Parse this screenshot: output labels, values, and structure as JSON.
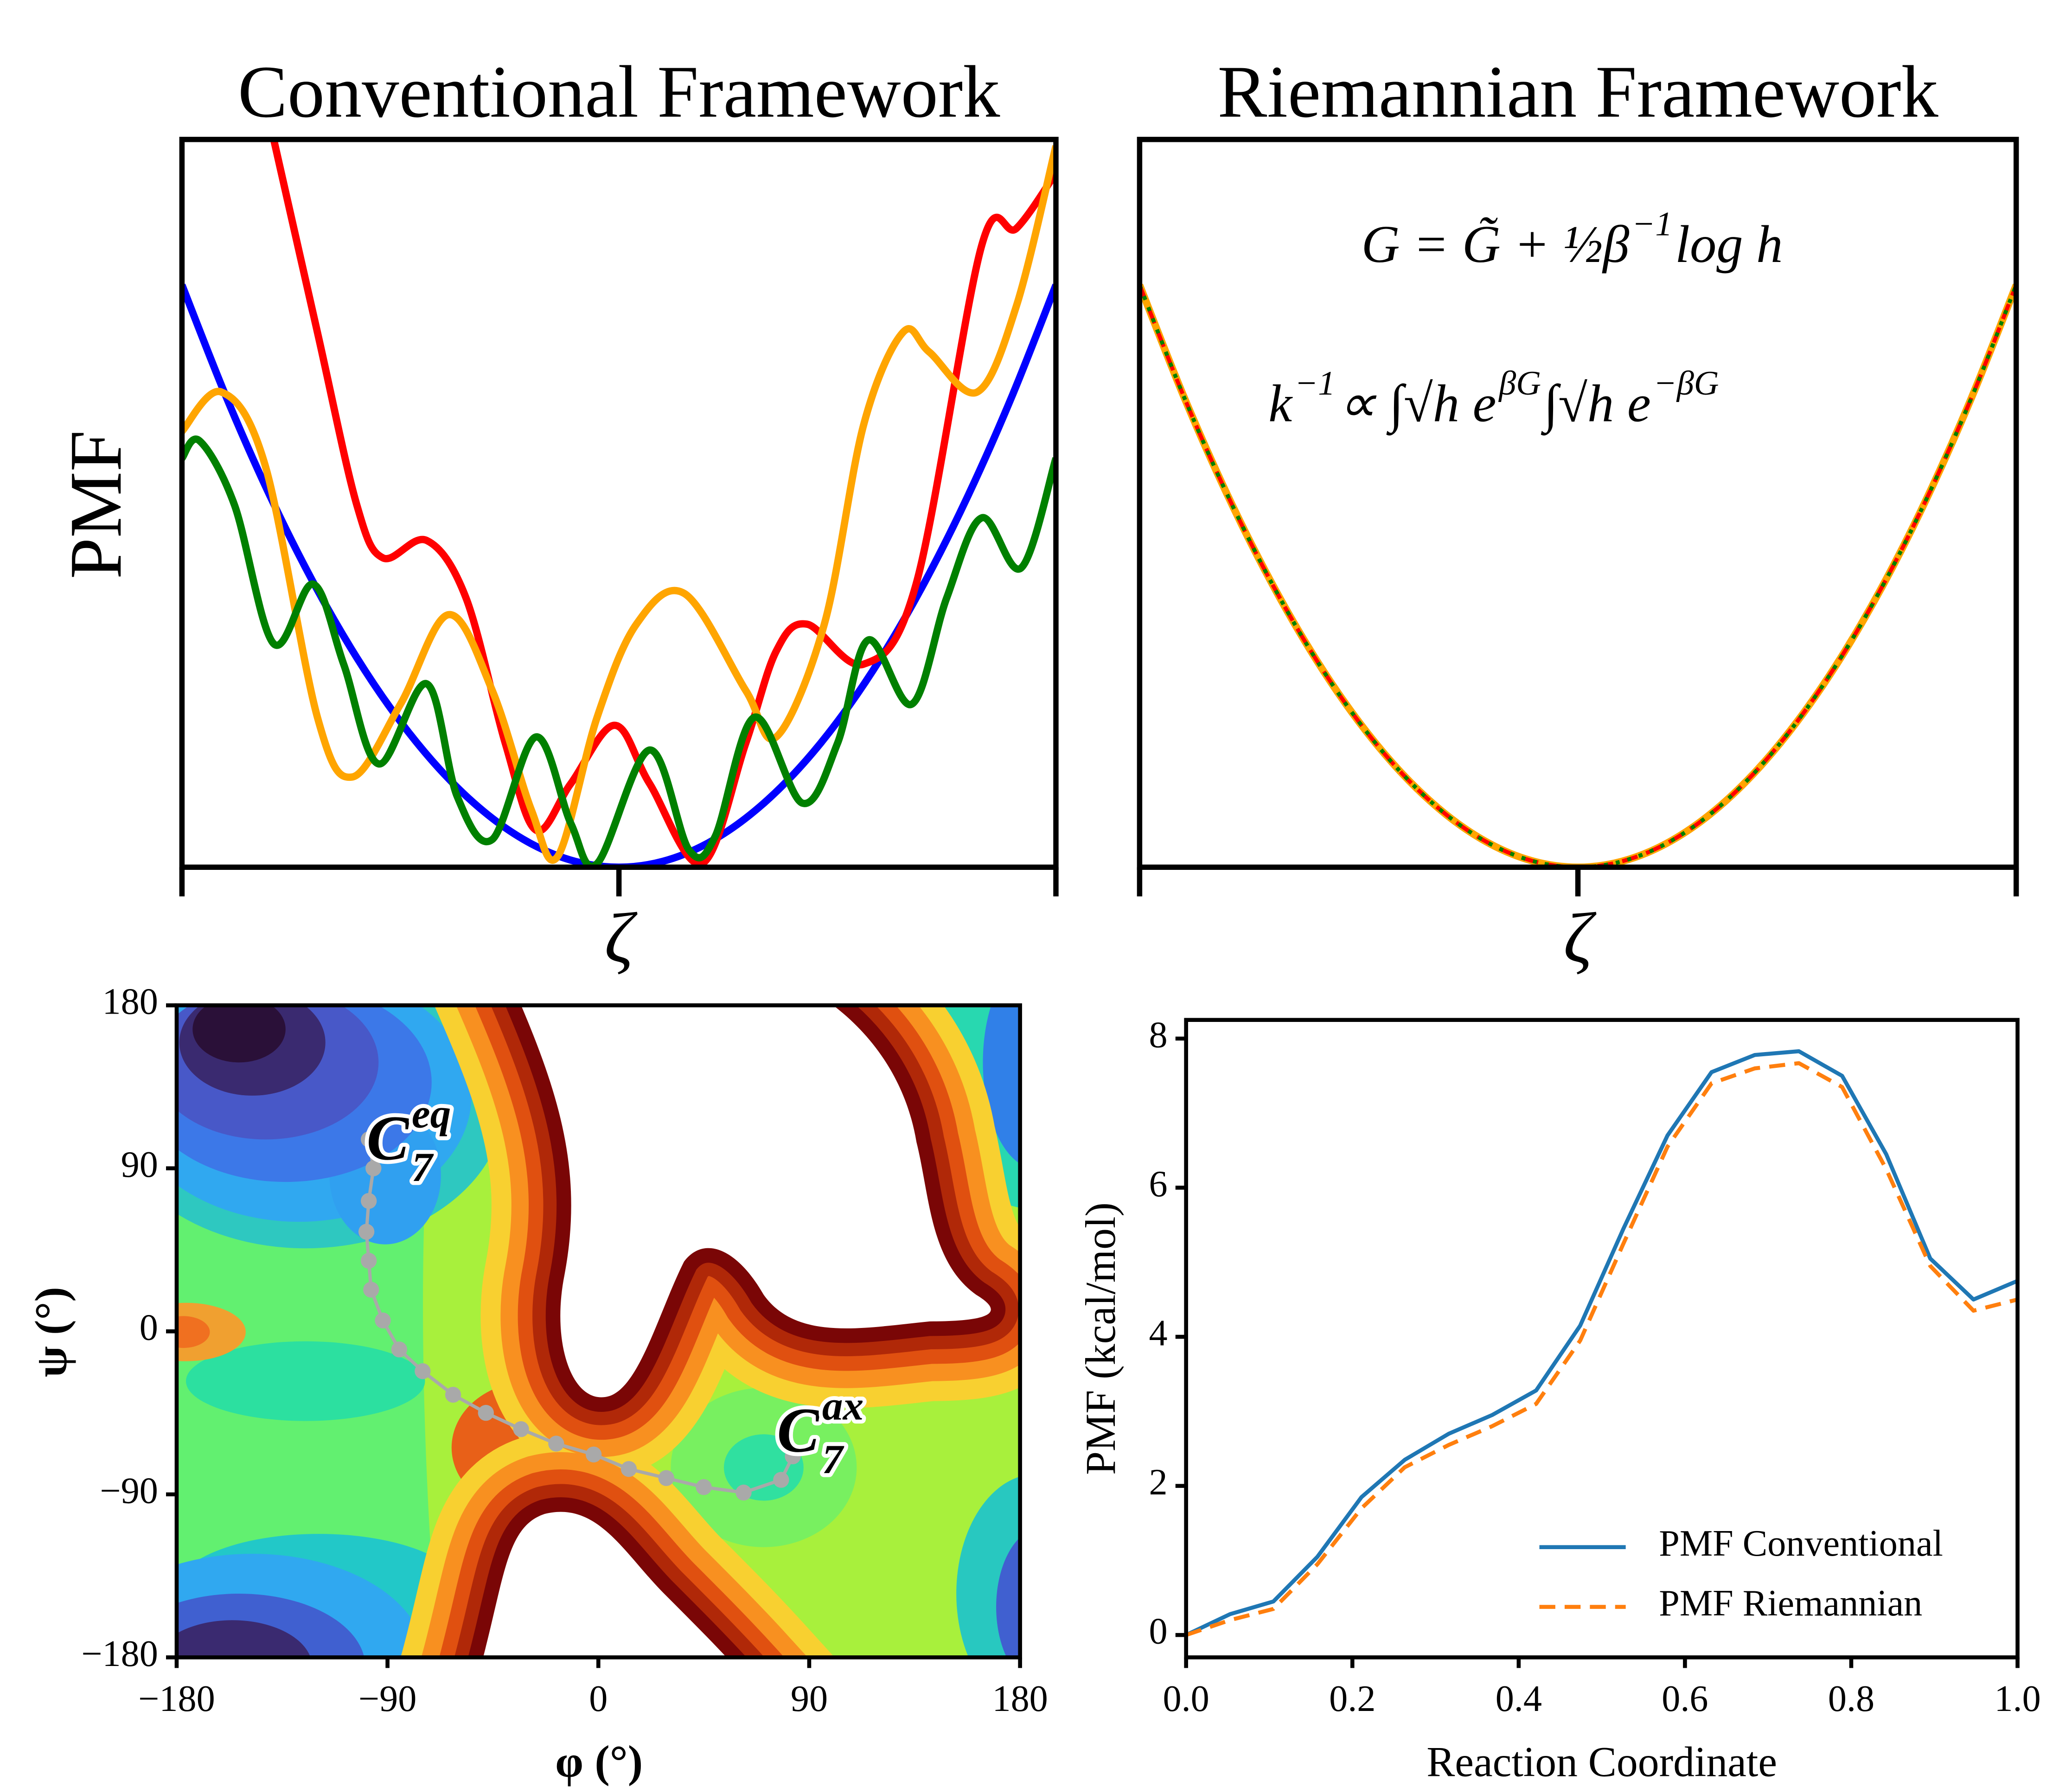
{
  "chart_data": [
    {
      "type": "line",
      "title": "Conventional Framework",
      "xlabel": "ζ",
      "ylabel": "PMF",
      "xlim": [
        -1,
        1
      ],
      "ylim": [
        0,
        10
      ],
      "xticks": [
        -1,
        0,
        1
      ],
      "tick_labels": false,
      "series": [
        {
          "color": "#0000ff",
          "x": [
            -1,
            -0.9,
            -0.8,
            -0.7,
            -0.6,
            -0.5,
            -0.4,
            -0.3,
            -0.2,
            -0.1,
            0,
            0.1,
            0.2,
            0.3,
            0.4,
            0.5,
            0.6,
            0.7,
            0.8,
            0.9,
            1
          ],
          "values": [
            8,
            6.48,
            5.12,
            3.92,
            2.88,
            2,
            1.28,
            0.72,
            0.32,
            0.08,
            0,
            0.08,
            0.32,
            0.72,
            1.28,
            2,
            2.88,
            3.92,
            5.12,
            6.48,
            8
          ]
        },
        {
          "color": "#ff0000",
          "x": [
            -0.79,
            -0.69,
            -0.6,
            -0.54,
            -0.44,
            -0.35,
            -0.26,
            -0.19,
            -0.11,
            -0.01,
            0.07,
            0.19,
            0.29,
            0.36,
            0.43,
            0.56,
            0.68,
            0.83,
            0.91,
            1
          ],
          "values": [
            10,
            7.35,
            4.98,
            4.25,
            4.49,
            3.7,
            1.7,
            0.51,
            1.15,
            1.95,
            1.15,
            0.05,
            1.7,
            2.97,
            3.34,
            2.79,
            3.89,
            8.54,
            8.78,
            9.54
          ]
        },
        {
          "color": "#ffa500",
          "x": [
            -1,
            -0.91,
            -0.81,
            -0.69,
            -0.61,
            -0.5,
            -0.39,
            -0.29,
            -0.2,
            -0.14,
            -0.05,
            0.04,
            0.15,
            0.29,
            0.36,
            0.47,
            0.56,
            0.65,
            0.71,
            0.82,
            0.91,
            1
          ],
          "values": [
            5.99,
            6.53,
            5.53,
            2.06,
            1.24,
            2.24,
            3.47,
            2.43,
            0.78,
            0.15,
            2.06,
            3.34,
            3.76,
            2.43,
            1.79,
            3.34,
            6.08,
            7.35,
            7.08,
            6.53,
            7.72,
            9.91
          ]
        },
        {
          "color": "#008000",
          "x": [
            -1,
            -0.96,
            -0.88,
            -0.79,
            -0.7,
            -0.63,
            -0.55,
            -0.44,
            -0.37,
            -0.29,
            -0.19,
            -0.11,
            -0.05,
            0.07,
            0.16,
            0.22,
            0.31,
            0.42,
            0.5,
            0.57,
            0.67,
            0.75,
            0.83,
            0.92,
            1
          ],
          "values": [
            5.62,
            5.86,
            4.98,
            3.07,
            3.89,
            2.79,
            1.42,
            2.52,
            0.97,
            0.38,
            1.79,
            0.6,
            0.05,
            1.61,
            0.24,
            0.42,
            2.06,
            0.88,
            1.7,
            3.12,
            2.24,
            3.7,
            4.8,
            4.11,
            5.62
          ]
        }
      ]
    },
    {
      "type": "line",
      "title": "Riemannian Framework",
      "xlabel": "ζ",
      "xlim": [
        -1,
        1
      ],
      "ylim": [
        0,
        10
      ],
      "xticks": [
        -1,
        0,
        1
      ],
      "tick_labels": false,
      "annotations": [
        [
          {
            "text": "G = G̃ + ½β"
          },
          {
            "sup": "−1"
          },
          {
            "text": "log h"
          }
        ],
        [
          {
            "text": "k"
          },
          {
            "sup": "−1"
          },
          {
            "text": " ∝ ∫√h e"
          },
          {
            "sup": "βG"
          },
          {
            "text": " ∫√h e"
          },
          {
            "sup": "−βG"
          }
        ]
      ],
      "x": [
        -1,
        -0.9,
        -0.8,
        -0.7,
        -0.6,
        -0.5,
        -0.4,
        -0.3,
        -0.2,
        -0.1,
        0,
        0.1,
        0.2,
        0.3,
        0.4,
        0.5,
        0.6,
        0.7,
        0.8,
        0.9,
        1
      ],
      "series": [
        {
          "color": "#ffa500",
          "linestyle": "solid",
          "values": [
            8,
            6.48,
            5.12,
            3.92,
            2.88,
            2,
            1.28,
            0.72,
            0.32,
            0.08,
            0,
            0.08,
            0.32,
            0.72,
            1.28,
            2,
            2.88,
            3.92,
            5.12,
            6.48,
            8
          ]
        },
        {
          "color": "#ff0000",
          "linestyle": "dashed",
          "values": [
            8,
            6.48,
            5.12,
            3.92,
            2.88,
            2,
            1.28,
            0.72,
            0.32,
            0.08,
            0,
            0.08,
            0.32,
            0.72,
            1.28,
            2,
            2.88,
            3.92,
            5.12,
            6.48,
            8
          ]
        },
        {
          "color": "#008000",
          "linestyle": "dotted",
          "values": [
            8,
            6.48,
            5.12,
            3.92,
            2.88,
            2,
            1.28,
            0.72,
            0.32,
            0.08,
            0,
            0.08,
            0.32,
            0.72,
            1.28,
            2,
            2.88,
            3.92,
            5.12,
            6.48,
            8
          ]
        }
      ]
    },
    {
      "type": "line",
      "xlabel": "φ (°)",
      "ylabel": "ψ (°)",
      "markers": true,
      "xlim": [
        -180,
        180
      ],
      "ylim": [
        -180,
        180
      ],
      "xticks": [
        {
          "value": -180,
          "label": "−180"
        },
        {
          "value": -90,
          "label": "−90"
        },
        0,
        90,
        180
      ],
      "yticks": [
        {
          "value": -180,
          "label": "−180"
        },
        {
          "value": -90,
          "label": "−90"
        },
        0,
        90,
        180
      ],
      "annotations": [
        [
          {
            "text": "C"
          },
          {
            "sub": "7"
          },
          {
            "sup": "eq"
          }
        ],
        [
          {
            "text": "C"
          },
          {
            "sub": "7"
          },
          {
            "sup": "ax"
          }
        ]
      ],
      "series": [
        {
          "color": "#a9a9a9",
          "x": [
            -98,
            -96,
            -98,
            -99,
            -98,
            -97,
            -92,
            -85,
            -75,
            -62,
            -48,
            -33,
            -18,
            -2,
            13,
            29,
            45,
            62,
            78,
            83
          ],
          "values": [
            106,
            90,
            72,
            55,
            39,
            23,
            6,
            -10,
            -22,
            -35,
            -45,
            -54,
            -62,
            -68,
            -76,
            -81,
            -86,
            -89,
            -82,
            -69
          ]
        }
      ]
    },
    {
      "type": "line",
      "xlabel": "Reaction Coordinate",
      "ylabel": "PMF (kcal/mol)",
      "legend": "lower right",
      "xlim": [
        0,
        1
      ],
      "ylim": [
        -0.3,
        8.25
      ],
      "xticks": [
        {
          "value": 0,
          "label": "0.0"
        },
        0.2,
        0.4,
        0.6,
        0.8,
        {
          "value": 1,
          "label": "1.0"
        }
      ],
      "yticks": [
        0,
        2,
        4,
        6,
        8
      ],
      "x": [
        0,
        0.053,
        0.105,
        0.158,
        0.211,
        0.263,
        0.316,
        0.368,
        0.421,
        0.474,
        0.526,
        0.579,
        0.632,
        0.684,
        0.737,
        0.789,
        0.842,
        0.895,
        0.947,
        1
      ],
      "series": [
        {
          "name": "PMF Conventional",
          "color": "#1f77b4",
          "linestyle": "solid",
          "values": [
            0,
            0.28,
            0.45,
            1.05,
            1.85,
            2.35,
            2.7,
            2.95,
            3.28,
            4.15,
            5.45,
            6.7,
            7.55,
            7.78,
            7.83,
            7.5,
            6.45,
            5.05,
            4.5,
            4.75
          ]
        },
        {
          "name": "PMF Riemannian",
          "color": "#ff7f0e",
          "linestyle": "dashed",
          "values": [
            0,
            0.2,
            0.35,
            0.95,
            1.7,
            2.25,
            2.55,
            2.8,
            3.1,
            3.95,
            5.25,
            6.55,
            7.4,
            7.6,
            7.67,
            7.35,
            6.25,
            4.95,
            4.35,
            4.5
          ]
        }
      ]
    }
  ]
}
